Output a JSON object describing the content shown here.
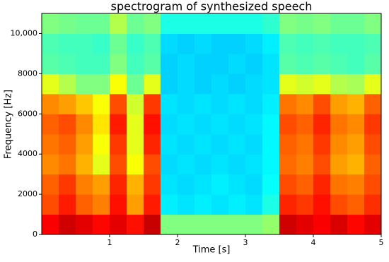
{
  "chart_data": {
    "type": "spectrogram",
    "title": "spectrogram of synthesized speech",
    "x_label": "Time [s]",
    "y_label": "Frequency [Hz]",
    "colormap": "jet",
    "xlim": [
      0,
      5
    ],
    "ylim": [
      0,
      11000
    ],
    "xticks": [
      1,
      2,
      3,
      4,
      5
    ],
    "yticks": [
      0,
      2000,
      4000,
      6000,
      8000,
      {
        "value": 10000,
        "label": "10,000"
      }
    ],
    "xbins": [
      0,
      0.25,
      0.5,
      0.75,
      1,
      1.25,
      1.5,
      1.75,
      2,
      2.25,
      2.5,
      2.75,
      3,
      3.25,
      3.5,
      3.75,
      4,
      4.25,
      4.5,
      4.75,
      5
    ],
    "ybins": [
      0,
      1000,
      2000,
      3000,
      4000,
      5000,
      6000,
      7000,
      8000,
      9000,
      10000,
      11000
    ],
    "z": [
      [
        0.88,
        0.92,
        0.9,
        0.87,
        0.9,
        0.86,
        0.93,
        0.5,
        0.5,
        0.5,
        0.5,
        0.5,
        0.5,
        0.52,
        0.92,
        0.9,
        0.88,
        0.91,
        0.87,
        0.9
      ],
      [
        0.8,
        0.85,
        0.78,
        0.75,
        0.86,
        0.72,
        0.85,
        0.36,
        0.35,
        0.36,
        0.35,
        0.36,
        0.35,
        0.4,
        0.84,
        0.82,
        0.86,
        0.8,
        0.78,
        0.83
      ],
      [
        0.78,
        0.82,
        0.75,
        0.72,
        0.84,
        0.7,
        0.82,
        0.35,
        0.34,
        0.35,
        0.36,
        0.35,
        0.34,
        0.38,
        0.8,
        0.78,
        0.84,
        0.76,
        0.75,
        0.8
      ],
      [
        0.74,
        0.76,
        0.7,
        0.6,
        0.8,
        0.62,
        0.8,
        0.34,
        0.35,
        0.34,
        0.35,
        0.34,
        0.35,
        0.37,
        0.77,
        0.75,
        0.8,
        0.72,
        0.7,
        0.78
      ],
      [
        0.76,
        0.78,
        0.72,
        0.62,
        0.82,
        0.6,
        0.84,
        0.35,
        0.34,
        0.35,
        0.34,
        0.35,
        0.34,
        0.37,
        0.78,
        0.76,
        0.82,
        0.74,
        0.72,
        0.8
      ],
      [
        0.78,
        0.8,
        0.74,
        0.65,
        0.85,
        0.6,
        0.86,
        0.34,
        0.35,
        0.34,
        0.35,
        0.34,
        0.35,
        0.37,
        0.8,
        0.78,
        0.84,
        0.76,
        0.74,
        0.82
      ],
      [
        0.74,
        0.72,
        0.68,
        0.62,
        0.8,
        0.58,
        0.82,
        0.35,
        0.34,
        0.35,
        0.34,
        0.35,
        0.34,
        0.36,
        0.76,
        0.74,
        0.8,
        0.72,
        0.7,
        0.78
      ],
      [
        0.6,
        0.55,
        0.5,
        0.5,
        0.62,
        0.48,
        0.6,
        0.33,
        0.34,
        0.33,
        0.34,
        0.33,
        0.34,
        0.35,
        0.6,
        0.58,
        0.6,
        0.55,
        0.54,
        0.6
      ],
      [
        0.46,
        0.45,
        0.44,
        0.44,
        0.5,
        0.44,
        0.46,
        0.33,
        0.34,
        0.33,
        0.33,
        0.34,
        0.33,
        0.35,
        0.46,
        0.45,
        0.46,
        0.45,
        0.44,
        0.46
      ],
      [
        0.45,
        0.44,
        0.44,
        0.43,
        0.48,
        0.43,
        0.45,
        0.34,
        0.33,
        0.34,
        0.33,
        0.33,
        0.34,
        0.36,
        0.45,
        0.44,
        0.45,
        0.44,
        0.44,
        0.45
      ],
      [
        0.5,
        0.49,
        0.48,
        0.48,
        0.55,
        0.48,
        0.5,
        0.4,
        0.4,
        0.4,
        0.4,
        0.4,
        0.4,
        0.42,
        0.5,
        0.49,
        0.5,
        0.48,
        0.48,
        0.5
      ]
    ]
  }
}
